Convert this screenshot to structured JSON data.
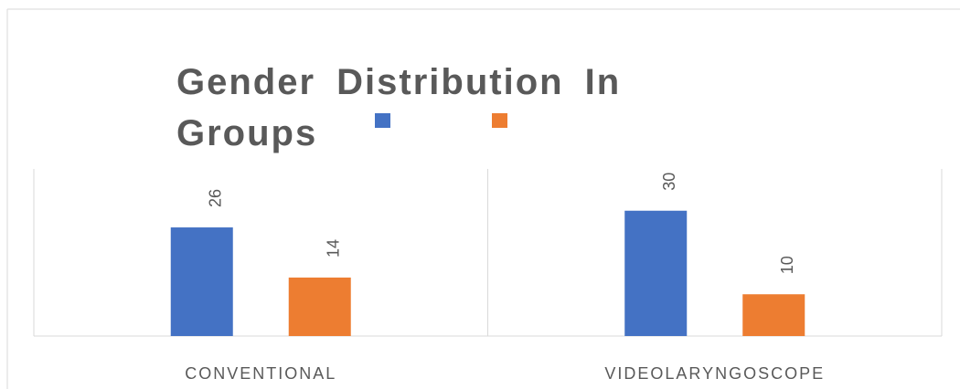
{
  "chart_data": {
    "type": "bar",
    "title": "Gender Distribution In Groups",
    "categories": [
      "CONVENTIONAL",
      "VIDEOLARYNGOSCOPE"
    ],
    "series": [
      {
        "color": "#4472c4",
        "values": [
          26,
          30
        ]
      },
      {
        "color": "#ed7d31",
        "values": [
          14,
          10
        ]
      }
    ],
    "ylim": [
      0,
      40
    ]
  }
}
